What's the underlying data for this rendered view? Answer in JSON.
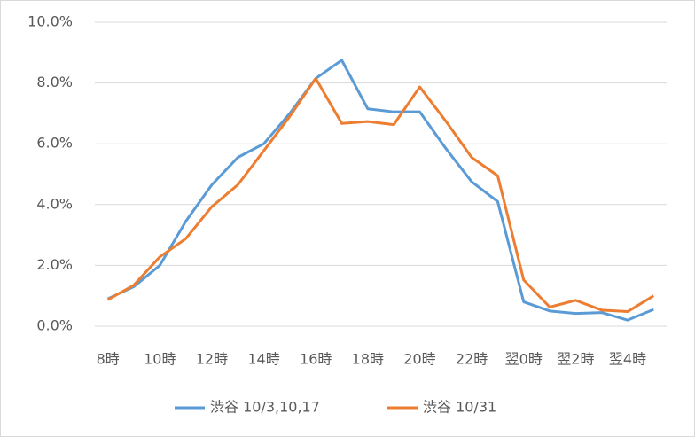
{
  "chart_data": {
    "type": "line",
    "categories": [
      "8時",
      null,
      "10時",
      null,
      "12時",
      null,
      "14時",
      null,
      "16時",
      null,
      "18時",
      null,
      "20時",
      null,
      "22時",
      null,
      "翌0時",
      null,
      "翌2時",
      null,
      "翌4時",
      null
    ],
    "series": [
      {
        "name": "渋谷 10/3,10,17",
        "color": "#5b9bd5",
        "values": [
          0.9,
          1.3,
          2.0,
          3.45,
          4.65,
          5.55,
          6.0,
          7.0,
          8.15,
          8.75,
          7.15,
          7.05,
          7.05,
          5.85,
          4.75,
          4.1,
          0.8,
          0.5,
          0.42,
          0.45,
          0.2,
          0.55
        ]
      },
      {
        "name": "渋谷 10/31",
        "color": "#ed7d31",
        "values": [
          0.87,
          1.35,
          2.28,
          2.88,
          3.93,
          4.65,
          5.77,
          6.9,
          8.15,
          6.67,
          6.73,
          6.63,
          7.87,
          6.75,
          5.55,
          4.95,
          1.52,
          0.63,
          0.85,
          0.53,
          0.48,
          1.0
        ]
      }
    ],
    "ylim": [
      0,
      10
    ],
    "yticks": [
      {
        "value": 0,
        "label": "0.0%"
      },
      {
        "value": 2,
        "label": "2.0%"
      },
      {
        "value": 4,
        "label": "4.0%"
      },
      {
        "value": 6,
        "label": "6.0%"
      },
      {
        "value": 8,
        "label": "8.0%"
      },
      {
        "value": 10,
        "label": "10.0%"
      }
    ],
    "grid": true,
    "legend": "bottom"
  }
}
